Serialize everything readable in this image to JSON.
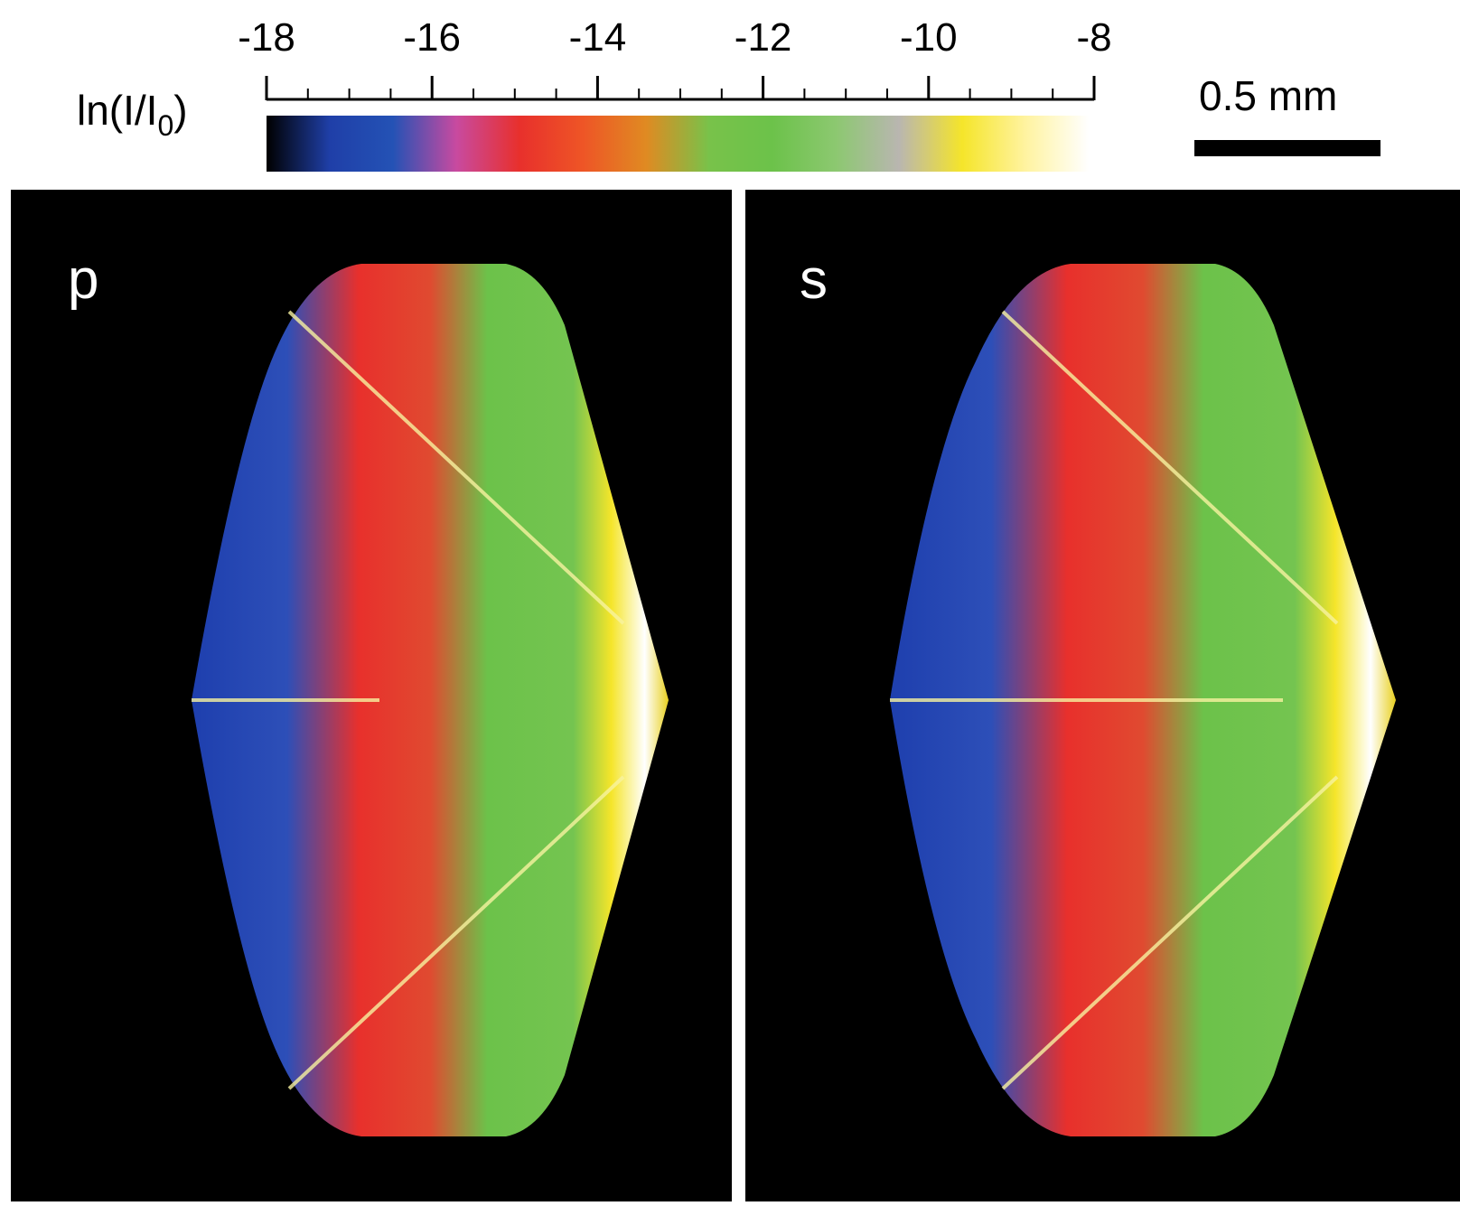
{
  "colorbar": {
    "label": [
      "ln(I/I",
      "0",
      ")"
    ],
    "ticks": [
      -18,
      -16,
      -14,
      -12,
      -10,
      -8
    ],
    "minor_ticks": [
      -17.5,
      -17,
      -16.5,
      -15.5,
      -15,
      -14.5,
      -13.5,
      -13,
      -12.5,
      -11.5,
      -11,
      -10.5,
      -9.5,
      -9,
      -8.5
    ],
    "lim": [
      -18,
      -8
    ],
    "colormap": [
      "#000000",
      "#1f3fa8",
      "#2452b5",
      "#c84aa0",
      "#e8302c",
      "#ee5526",
      "#e08a22",
      "#78c24a",
      "#6cc24a",
      "#8cc870",
      "#b9b6b0",
      "#f5e52a",
      "#fff3a0",
      "#ffffff"
    ]
  },
  "scale_bar": {
    "label": "0.5 mm"
  },
  "panels": [
    {
      "label": "p"
    },
    {
      "label": "s"
    }
  ]
}
